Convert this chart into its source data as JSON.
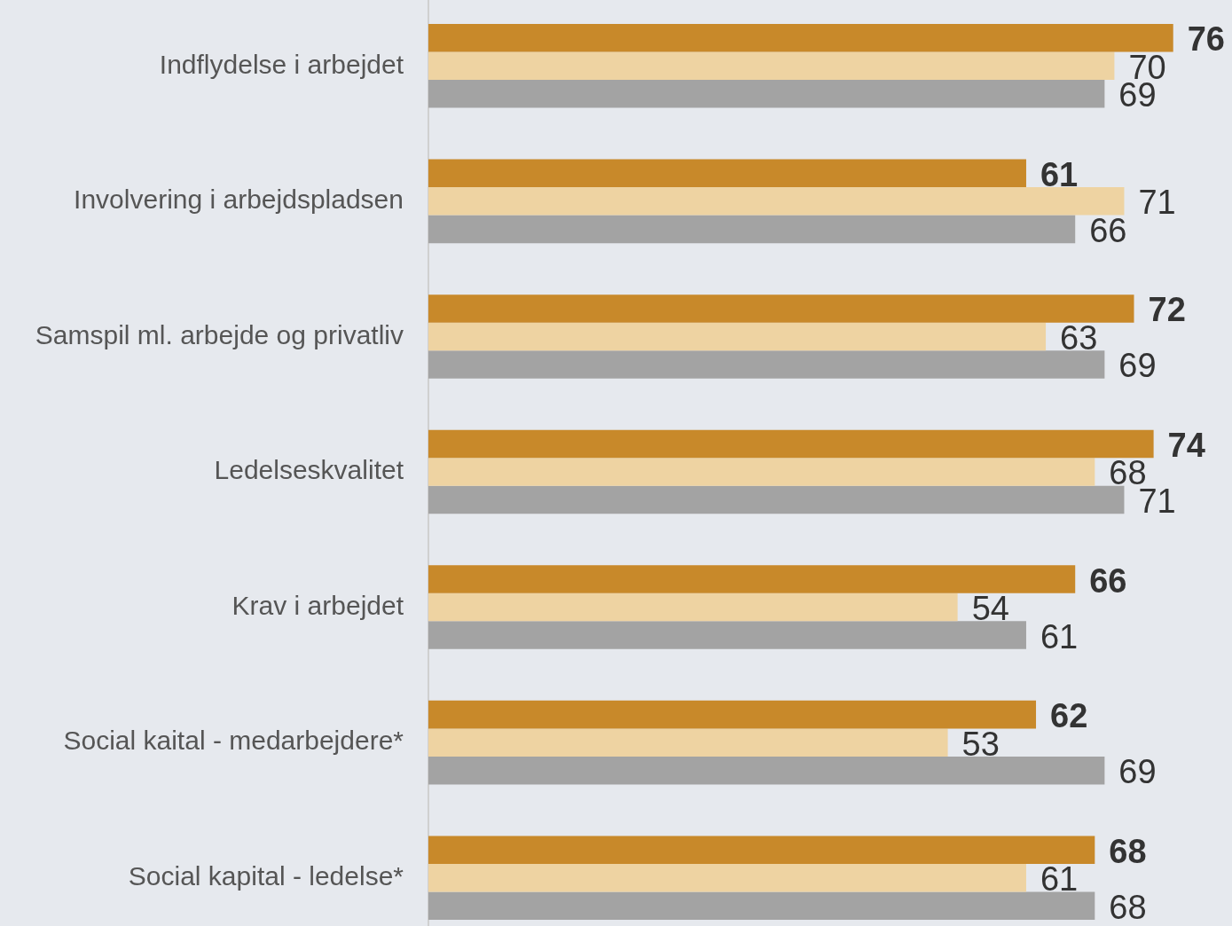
{
  "chart_data": {
    "type": "bar",
    "orientation": "horizontal",
    "categories": [
      "Indflydelse i arbejdet",
      "Involvering i arbejdspladsen",
      "Samspil ml. arbejde og privatliv",
      "Ledelseskvalitet",
      "Krav i arbejdet",
      "Social kaital - medarbejdere*",
      "Social kapital - ledelse*"
    ],
    "series": [
      {
        "color": "#c8892a",
        "values": [
          76,
          61,
          72,
          74,
          66,
          62,
          68
        ]
      },
      {
        "color": "#eed3a2",
        "values": [
          70,
          71,
          63,
          68,
          54,
          53,
          61
        ]
      },
      {
        "color": "#a3a3a3",
        "values": [
          69,
          66,
          69,
          71,
          61,
          69,
          68
        ]
      }
    ],
    "xlim": [
      0,
      82
    ],
    "data_labels": true
  }
}
